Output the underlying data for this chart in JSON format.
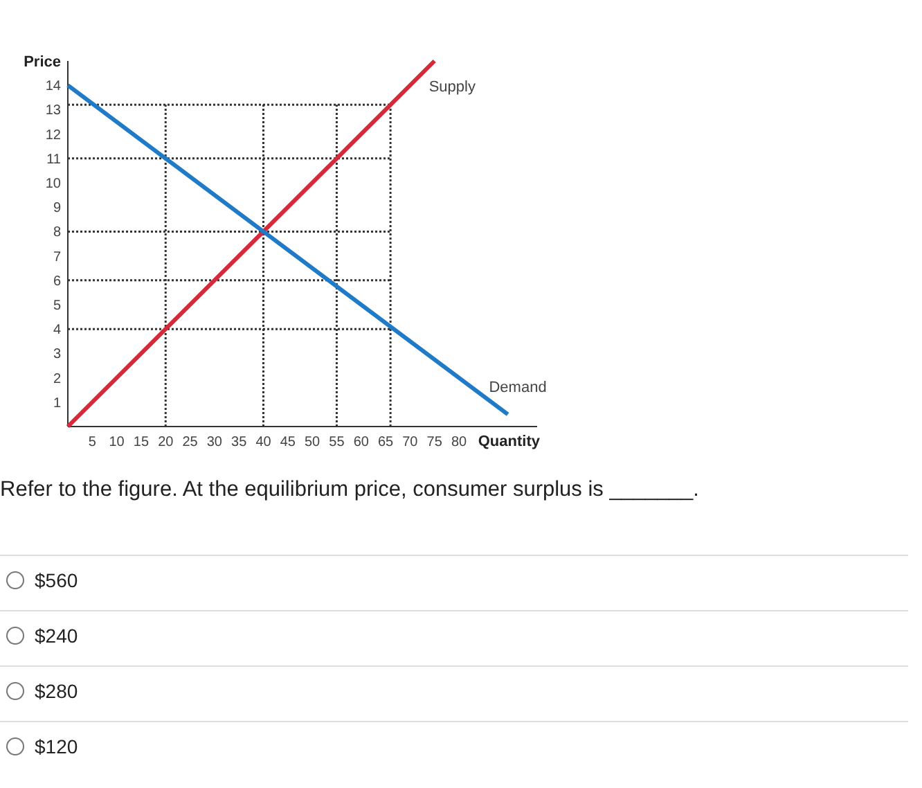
{
  "chart_data": {
    "type": "line",
    "xlabel": "Quantity",
    "ylabel": "Price",
    "xlim": [
      0,
      96
    ],
    "ylim": [
      0,
      15
    ],
    "xticks": [
      5,
      10,
      15,
      20,
      25,
      30,
      35,
      40,
      45,
      50,
      55,
      60,
      65,
      70,
      75,
      80
    ],
    "yticks": [
      1,
      2,
      3,
      4,
      5,
      6,
      7,
      8,
      9,
      10,
      11,
      12,
      13,
      14
    ],
    "line_style": "solid",
    "series": [
      {
        "name": "Supply",
        "color": "#d62a3a",
        "x": [
          0,
          20,
          40,
          55,
          66,
          75
        ],
        "values": [
          0,
          4,
          8,
          11,
          13.2,
          15
        ]
      },
      {
        "name": "Demand",
        "color": "#1f7ac8",
        "x": [
          0,
          20,
          40,
          90
        ],
        "values": [
          14,
          11,
          8,
          0.5
        ]
      }
    ],
    "ref_lines": [
      {
        "axis": "y",
        "value": 4,
        "line_style": "dotted",
        "color": "#333333"
      },
      {
        "axis": "y",
        "value": 6,
        "line_style": "dotted",
        "color": "#333333"
      },
      {
        "axis": "y",
        "value": 8,
        "line_style": "dotted",
        "color": "#333333"
      },
      {
        "axis": "y",
        "value": 11,
        "line_style": "dotted",
        "color": "#333333"
      },
      {
        "axis": "y",
        "value": 13.2,
        "line_style": "dotted",
        "color": "#333333"
      },
      {
        "axis": "x",
        "value": 20,
        "line_style": "dotted",
        "color": "#333333"
      },
      {
        "axis": "x",
        "value": 40,
        "line_style": "dotted",
        "color": "#333333"
      },
      {
        "axis": "x",
        "value": 55,
        "line_style": "dotted",
        "color": "#333333"
      },
      {
        "axis": "x",
        "value": 66,
        "line_style": "dotted",
        "color": "#333333"
      }
    ],
    "annotations": [
      "Refer to the figure. At the equilibrium price, consumer surplus is _______.",
      "$560",
      "$240",
      "$280",
      "$120"
    ]
  }
}
